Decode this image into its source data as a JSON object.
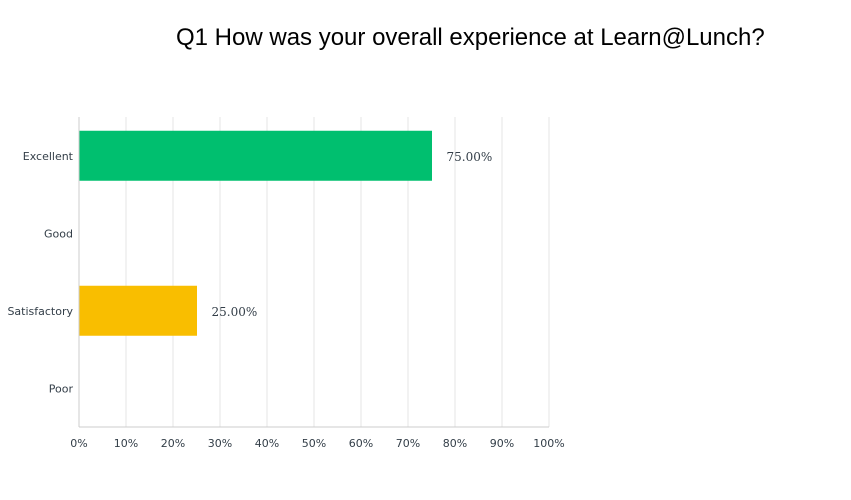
{
  "chart_data": {
    "type": "bar",
    "orientation": "horizontal",
    "title": "Q1 How was your overall experience at Learn@Lunch?",
    "categories": [
      "Excellent",
      "Good",
      "Satisfactory",
      "Poor"
    ],
    "values": [
      75,
      0,
      25,
      0
    ],
    "data_labels": [
      "75.00%",
      "",
      "25.00%",
      ""
    ],
    "bar_colors": [
      "#00bf6f",
      "#00bf6f",
      "#f9be00",
      "#f9be00"
    ],
    "x_ticks": [
      "0%",
      "10%",
      "20%",
      "30%",
      "40%",
      "50%",
      "60%",
      "70%",
      "80%",
      "90%",
      "100%"
    ],
    "xlim": [
      0,
      100
    ],
    "grid": "vertical",
    "xlabel": "",
    "ylabel": ""
  }
}
